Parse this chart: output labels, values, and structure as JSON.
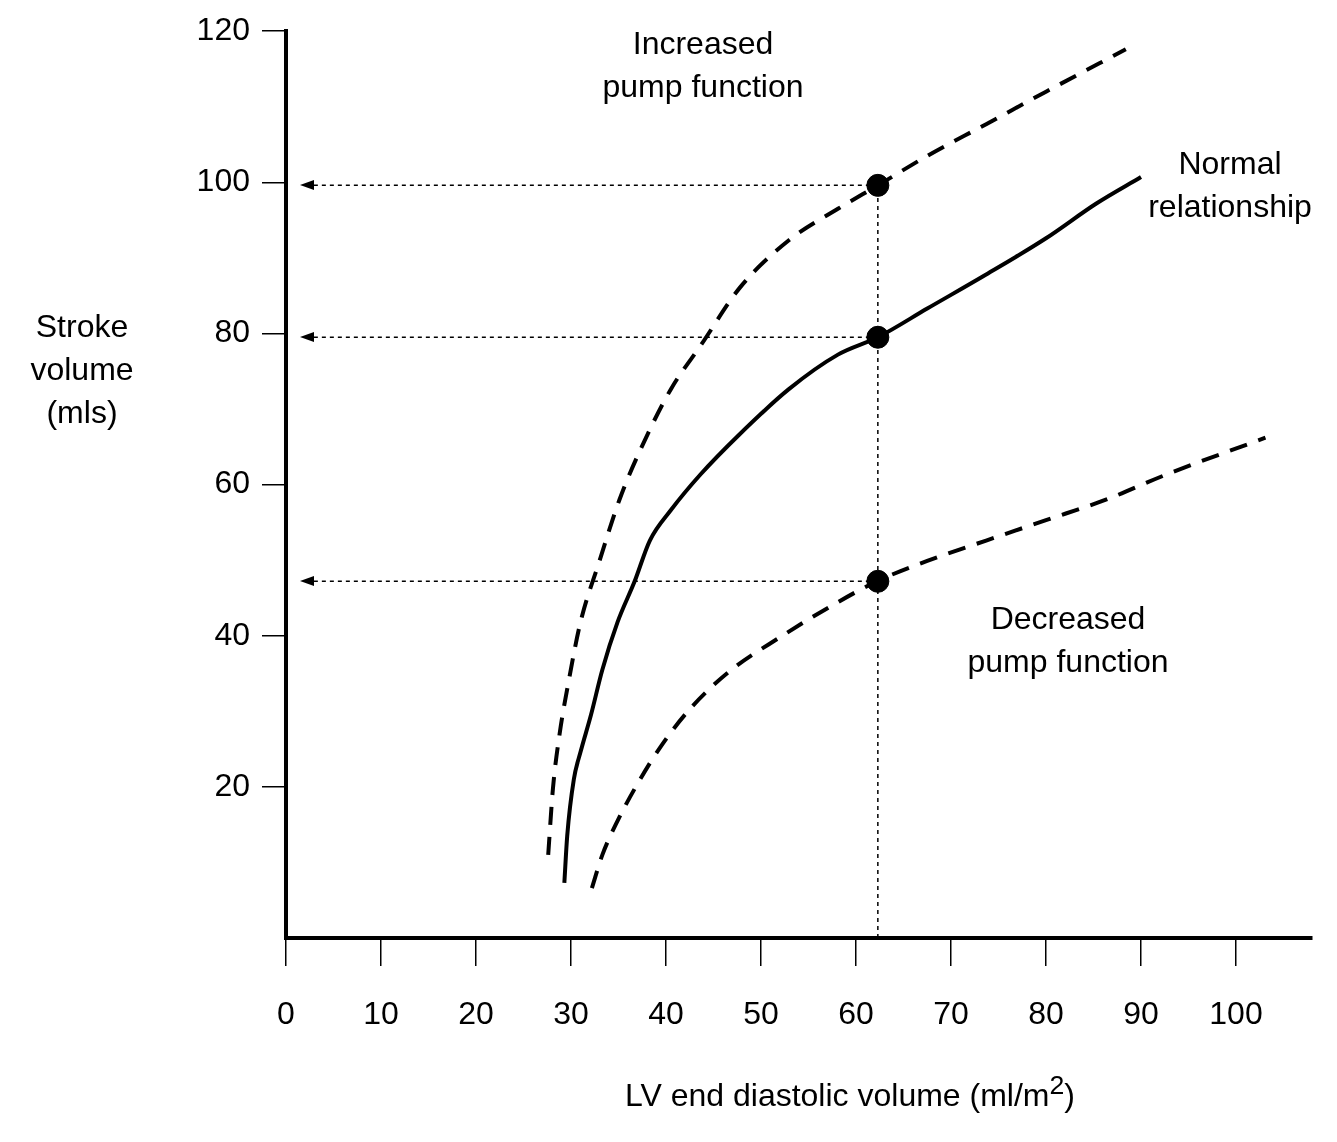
{
  "chart_data": {
    "type": "line",
    "xlabel": "LV end diastolic volume (ml/m$^{2}$)",
    "ylabel": "Stroke volume (mls)",
    "xlim": [
      0,
      108
    ],
    "xticks": [
      0,
      10,
      20,
      30,
      40,
      50,
      60,
      70,
      80,
      90,
      100
    ],
    "ylim": [
      0,
      120
    ],
    "yticks": [
      20,
      40,
      60,
      80,
      100,
      120
    ],
    "grid": false,
    "legend": false,
    "series": [
      {
        "line_style": "dashed",
        "marker": "none",
        "color": "#000000",
        "x": [
          27.6,
          28.1,
          28.8,
          29.8,
          31.0,
          33.0,
          35.1,
          37.3,
          40.5,
          43.7,
          47.8,
          53.0,
          58.1,
          62.3,
          67.5,
          73.7,
          80,
          88.4
        ],
        "values": [
          11.0,
          19.8,
          27.0,
          34.3,
          41.8,
          49.9,
          58.0,
          64.6,
          72.6,
          78.5,
          86.1,
          92.4,
          96.5,
          99.6,
          103.5,
          107.7,
          112.0,
          117.6
        ]
      },
      {
        "line_style": "solid",
        "marker": "none",
        "color": "#000000",
        "x": [
          29.3,
          29.6,
          30.3,
          31.0,
          32.1,
          33.3,
          34.9,
          36.7,
          38.3,
          40.5,
          43.6,
          47.7,
          52.9,
          58.1,
          62.3,
          67.5,
          73.7,
          80,
          85.3,
          90
        ],
        "values": [
          7.3,
          13.5,
          21.0,
          24.6,
          29.5,
          35.5,
          41.8,
          47.2,
          52.6,
          56.6,
          61.3,
          66.6,
          72.6,
          77.2,
          79.5,
          83.3,
          87.8,
          92.6,
          97.2,
          100.7
        ]
      },
      {
        "line_style": "dashed",
        "marker": "none",
        "color": "#000000",
        "x": [
          32.2,
          33.3,
          34.9,
          37.0,
          39.7,
          42.8,
          46.9,
          52.0,
          57.2,
          62.2,
          67.5,
          73.7,
          80,
          86.3,
          92.6,
          103.1
        ],
        "values": [
          6.6,
          11.0,
          15.5,
          20.4,
          25.8,
          30.7,
          35.5,
          39.8,
          43.8,
          47.2,
          49.9,
          52.6,
          55.3,
          58.0,
          61.3,
          66.2
        ]
      },
      {
        "type": "scatter",
        "marker": "circle",
        "color": "#000000",
        "x": [
          62.3,
          62.3,
          62.3
        ],
        "values": [
          99.6,
          79.5,
          47.2
        ]
      }
    ],
    "ref_lines": [
      {
        "axis": "x",
        "value": 62.3,
        "line_style": "dotted"
      },
      {
        "axis": "y",
        "value": 99.6,
        "line_style": "dotted"
      },
      {
        "axis": "y",
        "value": 79.5,
        "line_style": "dotted"
      },
      {
        "axis": "y",
        "value": 47.2,
        "line_style": "dotted"
      }
    ],
    "annotations": [
      "Increased\npump function",
      "Normal\nrelationship",
      "Decreased\npump function"
    ]
  }
}
